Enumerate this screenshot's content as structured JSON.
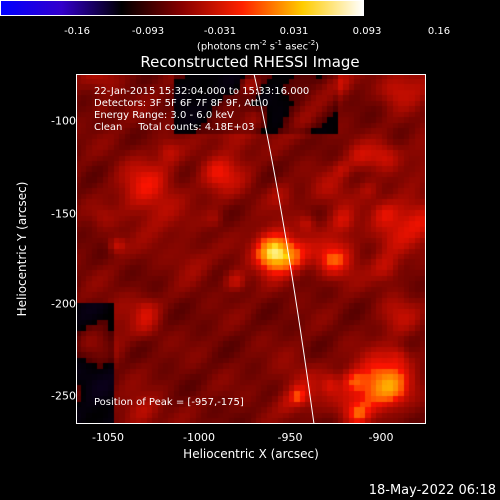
{
  "colorbar": {
    "ticks": [
      "-0.16",
      "-0.093",
      "-0.031",
      "0.031",
      "0.093",
      "0.16"
    ],
    "units_main": "(photons cm",
    "units_exp1": "-2",
    "units_mid1": " s",
    "units_exp2": "-1",
    "units_mid2": " asec",
    "units_exp3": "-2",
    "units_end": ")",
    "colors": [
      "#0000ff",
      "#3300cc",
      "#000000",
      "#880000",
      "#ff2200",
      "#ffcc00",
      "#ffffff"
    ]
  },
  "chart_data": {
    "type": "heatmap",
    "title": "Reconstructed RHESSI Image",
    "xlabel": "Heliocentric X (arcsec)",
    "ylabel": "Heliocentric Y (arcsec)",
    "xlim": [
      -1067,
      -875
    ],
    "ylim": [
      -268,
      -76
    ],
    "xticks": [
      "-1050",
      "-1000",
      "-950",
      "-900"
    ],
    "yticks": [
      "-100",
      "-150",
      "-200",
      "-250"
    ],
    "peak": {
      "x": -957,
      "y": -175
    },
    "info_lines": [
      "22-Jan-2015 15:32:04.000 to 15:33:16.000",
      "Detectors: 3F 5F 6F 7F 8F 9F, Att 0",
      "Energy Range: 3.0 - 6.0 keV",
      "Clean     Total counts: 4.18E+03"
    ],
    "peak_label": "Position of Peak = [-957,-175]"
  },
  "timestamp": "18-May-2022 06:18"
}
